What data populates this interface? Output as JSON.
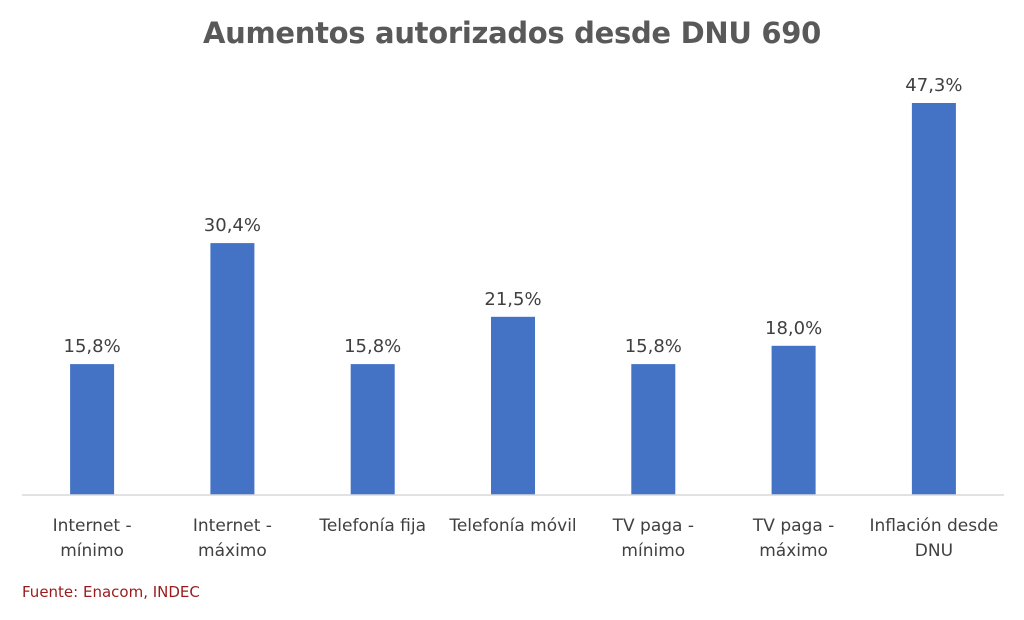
{
  "chart_data": {
    "type": "bar",
    "title": "Aumentos autorizados desde DNU 690",
    "categories": [
      [
        "Internet -",
        "mínimo"
      ],
      [
        "Internet -",
        "máximo"
      ],
      [
        "Telefonía fija"
      ],
      [
        "Telefonía móvil"
      ],
      [
        "TV paga -",
        "mínimo"
      ],
      [
        "TV paga -",
        "máximo"
      ],
      [
        "Inflación desde",
        "DNU"
      ]
    ],
    "values": [
      15.8,
      30.4,
      15.8,
      21.5,
      15.8,
      18.0,
      47.3
    ],
    "value_labels": [
      "15,8%",
      "30,4%",
      "15,8%",
      "21,5%",
      "15,8%",
      "18,0%",
      "47,3%"
    ],
    "xlabel": "",
    "ylabel": "",
    "ylim": [
      0,
      50
    ],
    "grid": false,
    "legend": "none",
    "bar_color": "#4472C4"
  },
  "source": "Fuente: Enacom, INDEC"
}
